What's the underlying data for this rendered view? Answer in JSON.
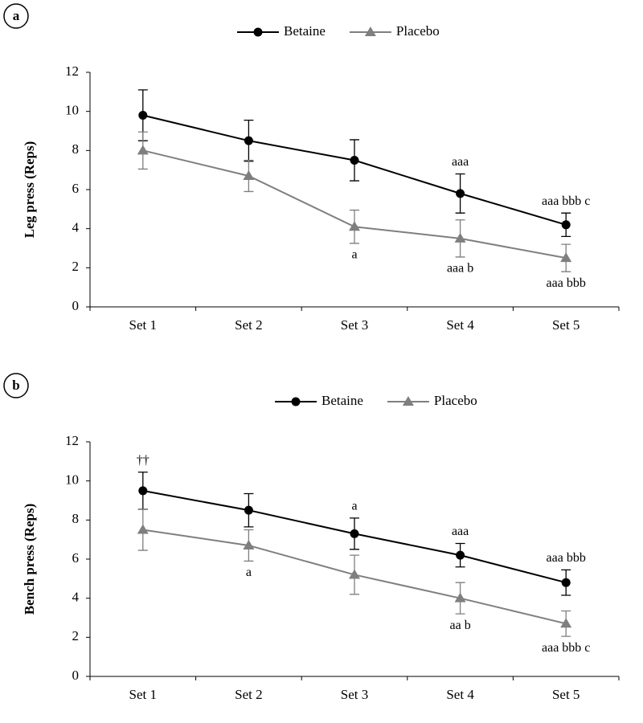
{
  "chart_data": [
    {
      "type": "line",
      "panel": "a",
      "y_label": "Leg press (Reps)",
      "categories": [
        "Set 1",
        "Set 2",
        "Set 3",
        "Set 4",
        "Set 5"
      ],
      "ylim": [
        0,
        12
      ],
      "yticks": [
        0,
        2,
        4,
        6,
        8,
        10,
        12
      ],
      "series": [
        {
          "name": "Betaine",
          "color": "#000000",
          "marker": "circle",
          "values": [
            9.8,
            8.5,
            7.5,
            5.8,
            4.2
          ],
          "errors": [
            1.3,
            1.05,
            1.05,
            1.0,
            0.6
          ],
          "annotations": [
            null,
            null,
            null,
            "aaa",
            "aaa bbb c"
          ]
        },
        {
          "name": "Placebo",
          "color": "#7f7f7f",
          "marker": "triangle",
          "values": [
            8.0,
            6.7,
            4.1,
            3.5,
            2.5
          ],
          "errors": [
            0.95,
            0.8,
            0.85,
            0.95,
            0.7
          ],
          "annotations": [
            null,
            null,
            "a",
            "aaa b",
            "aaa bbb"
          ]
        }
      ]
    },
    {
      "type": "line",
      "panel": "b",
      "y_label": "Bench press (Reps)",
      "categories": [
        "Set 1",
        "Set 2",
        "Set 3",
        "Set 4",
        "Set 5"
      ],
      "ylim": [
        0,
        12
      ],
      "yticks": [
        0,
        2,
        4,
        6,
        8,
        10,
        12
      ],
      "series": [
        {
          "name": "Betaine",
          "color": "#000000",
          "marker": "circle",
          "values": [
            9.5,
            8.5,
            7.3,
            6.2,
            4.8
          ],
          "errors": [
            0.95,
            0.85,
            0.8,
            0.6,
            0.65
          ],
          "annotations": [
            "††",
            null,
            "a",
            "aaa",
            "aaa bbb"
          ]
        },
        {
          "name": "Placebo",
          "color": "#7f7f7f",
          "marker": "triangle",
          "values": [
            7.5,
            6.7,
            5.2,
            4.0,
            2.7
          ],
          "errors": [
            1.05,
            0.8,
            1.0,
            0.8,
            0.65
          ],
          "annotations": [
            null,
            "a",
            null,
            "aa b",
            "aaa bbb c"
          ]
        }
      ]
    }
  ]
}
